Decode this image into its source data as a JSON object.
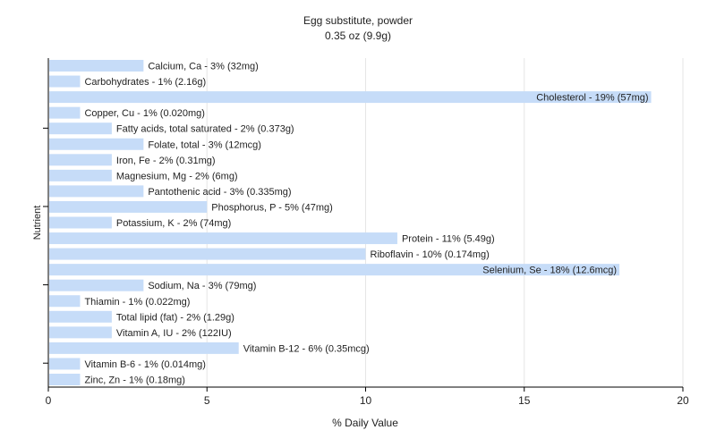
{
  "chart_data": {
    "type": "bar",
    "orientation": "horizontal",
    "title": "Egg substitute, powder",
    "subtitle": "0.35 oz (9.9g)",
    "xlabel": "% Daily Value",
    "ylabel": "Nutrient",
    "xlim": [
      0,
      20
    ],
    "xticks": [
      0,
      5,
      10,
      15,
      20
    ],
    "grid": true,
    "legend": "none",
    "bar_color": "#c6dcf8",
    "categories": [
      "Calcium, Ca",
      "Carbohydrates",
      "Cholesterol",
      "Copper, Cu",
      "Fatty acids, total saturated",
      "Folate, total",
      "Iron, Fe",
      "Magnesium, Mg",
      "Pantothenic acid",
      "Phosphorus, P",
      "Potassium, K",
      "Protein",
      "Riboflavin",
      "Selenium, Se",
      "Sodium, Na",
      "Thiamin",
      "Total lipid (fat)",
      "Vitamin A, IU",
      "Vitamin B-12",
      "Vitamin B-6",
      "Zinc, Zn"
    ],
    "values": [
      3,
      1,
      19,
      1,
      2,
      3,
      2,
      2,
      3,
      5,
      2,
      11,
      10,
      18,
      3,
      1,
      2,
      2,
      6,
      1,
      1
    ],
    "labels": [
      "Calcium, Ca - 3% (32mg)",
      "Carbohydrates - 1% (2.16g)",
      "Cholesterol - 19% (57mg)",
      "Copper, Cu - 1% (0.020mg)",
      "Fatty acids, total saturated - 2% (0.373g)",
      "Folate, total - 3% (12mcg)",
      "Iron, Fe - 2% (0.31mg)",
      "Magnesium, Mg - 2% (6mg)",
      "Pantothenic acid - 3% (0.335mg)",
      "Phosphorus, P - 5% (47mg)",
      "Potassium, K - 2% (74mg)",
      "Protein - 11% (5.49g)",
      "Riboflavin - 10% (0.174mg)",
      "Selenium, Se - 18% (12.6mcg)",
      "Sodium, Na - 3% (79mg)",
      "Thiamin - 1% (0.022mg)",
      "Total lipid (fat) - 2% (1.29g)",
      "Vitamin A, IU - 2% (122IU)",
      "Vitamin B-12 - 6% (0.35mcg)",
      "Vitamin B-6 - 1% (0.014mg)",
      "Zinc, Zn - 1% (0.18mg)"
    ]
  }
}
